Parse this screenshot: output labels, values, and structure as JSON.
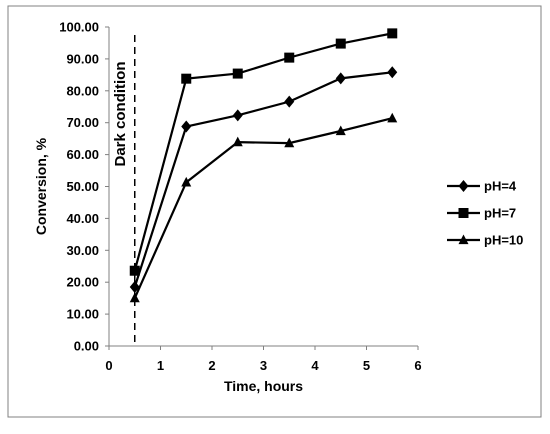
{
  "chart_data": {
    "type": "line",
    "xlabel": "Time, hours",
    "ylabel": "Conversion, %",
    "xlim": [
      0,
      6
    ],
    "ylim": [
      0,
      100
    ],
    "x_ticks": [
      "0",
      "1",
      "2",
      "3",
      "4",
      "5",
      "6"
    ],
    "y_ticks": [
      "0.00",
      "10.00",
      "20.00",
      "30.00",
      "40.00",
      "50.00",
      "60.00",
      "70.00",
      "80.00",
      "90.00",
      "100.00"
    ],
    "grid": false,
    "legend_position": "right",
    "annotation": {
      "text": "Dark condition",
      "x": 0.5
    },
    "series": [
      {
        "name": "pH=4",
        "marker": "diamond",
        "x": [
          0.5,
          1.5,
          2.5,
          3.5,
          4.5,
          5.5
        ],
        "values": [
          18.5,
          68.8,
          72.3,
          76.6,
          83.9,
          85.8
        ]
      },
      {
        "name": "pH=7",
        "marker": "square",
        "x": [
          0.5,
          1.5,
          2.5,
          3.5,
          4.5,
          5.5
        ],
        "values": [
          23.6,
          83.8,
          85.4,
          90.4,
          94.8,
          98.0
        ]
      },
      {
        "name": "pH=10",
        "marker": "triangle",
        "x": [
          0.5,
          1.5,
          2.5,
          3.5,
          4.5,
          5.5
        ],
        "values": [
          15.0,
          51.3,
          63.9,
          63.6,
          67.4,
          71.4
        ]
      }
    ]
  }
}
